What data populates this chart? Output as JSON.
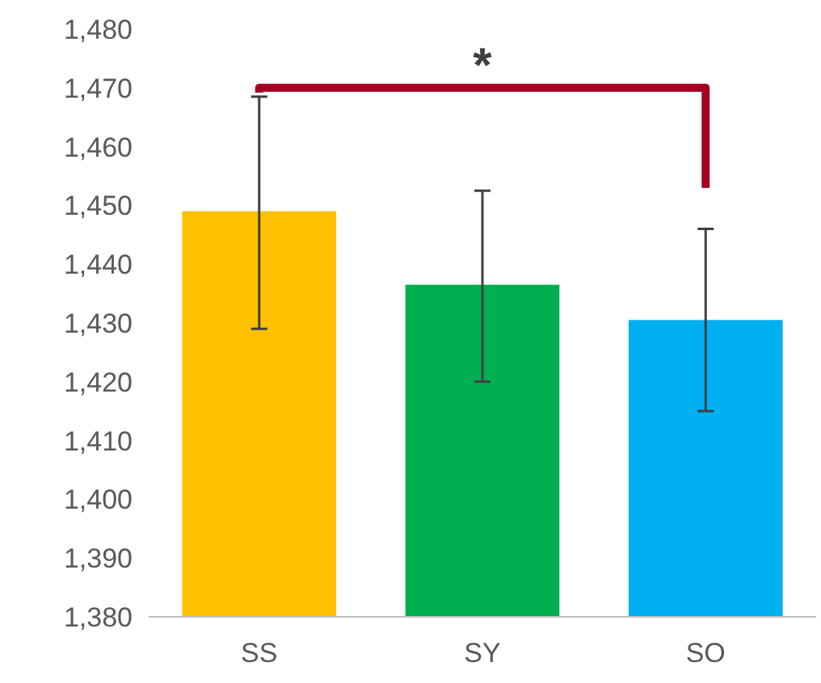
{
  "chart_data": {
    "type": "bar",
    "categories": [
      "SS",
      "SY",
      "SO"
    ],
    "values": [
      1449,
      1436.5,
      1430.5
    ],
    "colors": [
      "#ffc000",
      "#00b050",
      "#00b0f0"
    ],
    "errors": [
      [
        1429,
        1468.5
      ],
      [
        1420,
        1452.5
      ],
      [
        1415,
        1446
      ]
    ],
    "ylim": [
      1380,
      1480
    ],
    "yticks": [
      {
        "value": 1380,
        "label": "1,380"
      },
      {
        "value": 1390,
        "label": "1,390"
      },
      {
        "value": 1400,
        "label": "1,400"
      },
      {
        "value": 1410,
        "label": "1,410"
      },
      {
        "value": 1420,
        "label": "1,420"
      },
      {
        "value": 1430,
        "label": "1,430"
      },
      {
        "value": 1440,
        "label": "1,440"
      },
      {
        "value": 1450,
        "label": "1,450"
      },
      {
        "value": 1460,
        "label": "1,460"
      },
      {
        "value": 1470,
        "label": "1,470"
      },
      {
        "value": 1480,
        "label": "1,480"
      }
    ],
    "grid": false,
    "annotations": [
      "*"
    ]
  }
}
